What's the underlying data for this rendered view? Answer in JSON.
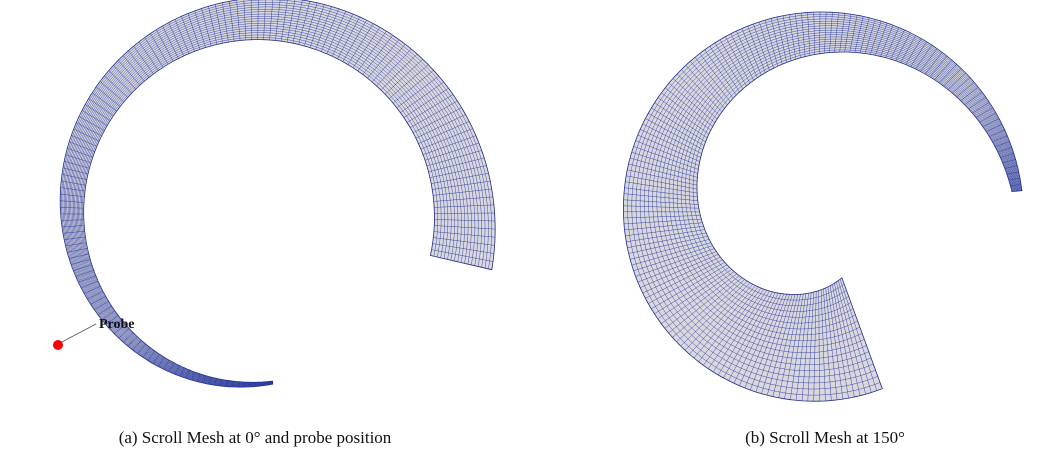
{
  "figure": {
    "panels": [
      {
        "caption": "(a) Scroll Mesh at 0° and probe position",
        "annotation": "Probe"
      },
      {
        "caption": "(b) Scroll Mesh at 150°"
      }
    ]
  }
}
